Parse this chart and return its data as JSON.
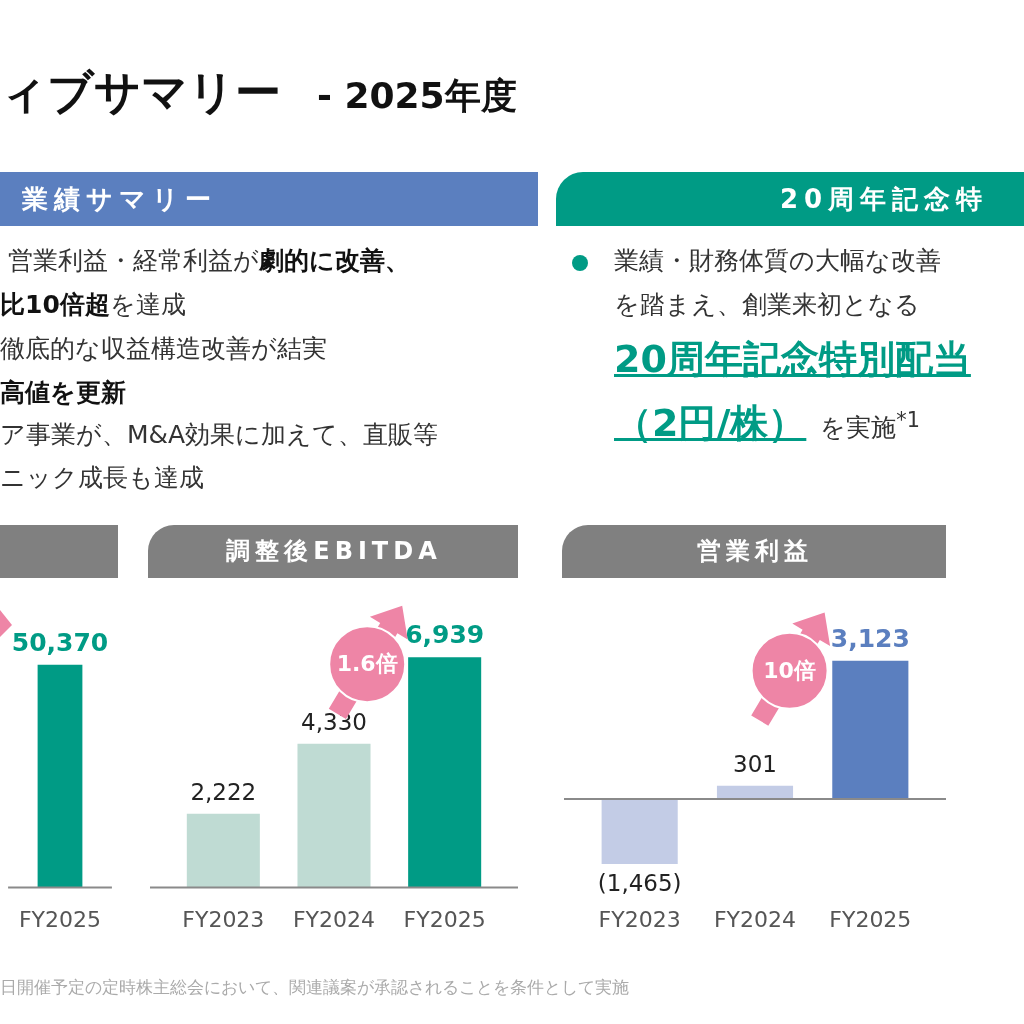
{
  "chart_data": [
    {
      "type": "other",
      "title": "ィブサマリー",
      "subtitle": "- 2025年度",
      "annotations": [
        "業績サマリー",
        "営業利益・経常利益が",
        "劇的に改善、",
        "比10倍超",
        "を達成",
        "徹底的な収益構造改善が結実",
        "高値を更新",
        "ア事業が、M&A効果に加えて、直販等",
        "ニック成長も達成",
        "20周年記念特",
        "業績・財務体質の大幅な改善",
        "を踏まえ、創業来初となる",
        "20周年記念特別配当",
        "（2円/株）",
        "を実施$^{*1}$",
        "日開催予定の定時株主総会において、関連議案が承認されることを条件として実施"
      ]
    },
    {
      "type": "bar",
      "categories": [
        "FY2025"
      ],
      "values": [
        50370
      ],
      "colors": [
        "#009b85"
      ],
      "value_labels": [
        "50,370"
      ],
      "tick_labels": "x"
    },
    {
      "type": "bar",
      "title": "調整後EBITDA",
      "categories": [
        "FY2023",
        "FY2024",
        "FY2025"
      ],
      "values": [
        2222,
        4330,
        6939
      ],
      "colors": [
        "#bfdbd3",
        "#bfdbd3",
        "#009b85"
      ],
      "value_labels": [
        "2,222",
        "4,330",
        "6,939"
      ],
      "tick_labels": "x",
      "annotations": [
        "1.6倍"
      ]
    },
    {
      "type": "bar",
      "title": "営業利益",
      "categories": [
        "FY2023",
        "FY2024",
        "FY2025"
      ],
      "values": [
        -1465,
        301,
        3123
      ],
      "colors": [
        "#c3cce6",
        "#c3cce6",
        "#5b7fbf"
      ],
      "value_labels": [
        "(1,465)",
        "301",
        "3,123"
      ],
      "tick_labels": "x",
      "annotations": [
        "10倍"
      ]
    }
  ]
}
